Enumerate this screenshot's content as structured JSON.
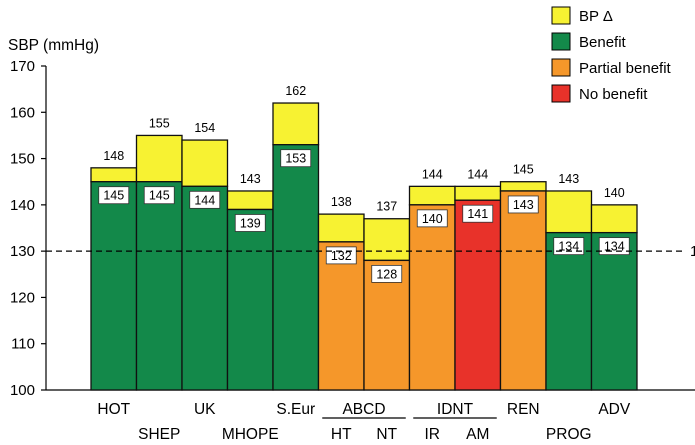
{
  "chart_data": {
    "type": "bar",
    "ylabel": "SBP (mmHg)",
    "ylim": [
      100,
      170
    ],
    "yticks": [
      100,
      110,
      120,
      130,
      140,
      150,
      160,
      170
    ],
    "reference_line": {
      "value": 130,
      "style": "dashed",
      "edge_label": "1"
    },
    "colors": {
      "bp_delta": "#f7f232",
      "benefit": "#13894a",
      "partial": "#f5972a",
      "none": "#e8322a",
      "outline": "#111111"
    },
    "legend": [
      {
        "key": "bp_delta",
        "label": "BP Δ"
      },
      {
        "key": "benefit",
        "label": "Benefit"
      },
      {
        "key": "partial",
        "label": "Partial benefit"
      },
      {
        "key": "none",
        "label": "No benefit"
      }
    ],
    "bars": [
      {
        "name": "HOT",
        "row": 1,
        "baseline": 148,
        "achieved": 145,
        "outcome": "benefit"
      },
      {
        "name": "SHEP",
        "row": 2,
        "baseline": 155,
        "achieved": 145,
        "outcome": "benefit"
      },
      {
        "name": "UK",
        "row": 1,
        "baseline": 154,
        "achieved": 144,
        "outcome": "benefit"
      },
      {
        "name": "MHOPE",
        "row": 2,
        "baseline": 143,
        "achieved": 139,
        "outcome": "benefit"
      },
      {
        "name": "S.Eur",
        "row": 1,
        "baseline": 162,
        "achieved": 153,
        "outcome": "benefit"
      },
      {
        "name": "HT",
        "row": 2,
        "baseline": 138,
        "achieved": 132,
        "outcome": "partial"
      },
      {
        "name": "NT",
        "row": 2,
        "baseline": 137,
        "achieved": 128,
        "outcome": "partial"
      },
      {
        "name": "IR",
        "row": 2,
        "baseline": 144,
        "achieved": 140,
        "outcome": "partial"
      },
      {
        "name": "AM",
        "row": 2,
        "baseline": 144,
        "achieved": 141,
        "outcome": "none"
      },
      {
        "name": "REN",
        "row": 1,
        "baseline": 145,
        "achieved": 143,
        "outcome": "partial"
      },
      {
        "name": "PROG",
        "row": 2,
        "baseline": 143,
        "achieved": 134,
        "outcome": "benefit"
      },
      {
        "name": "ADV",
        "row": 1,
        "baseline": 140,
        "achieved": 134,
        "outcome": "benefit"
      }
    ],
    "groups": [
      {
        "name": "ABCD",
        "members": [
          "HT",
          "NT"
        ]
      },
      {
        "name": "IDNT",
        "members": [
          "IR",
          "AM"
        ]
      }
    ]
  }
}
